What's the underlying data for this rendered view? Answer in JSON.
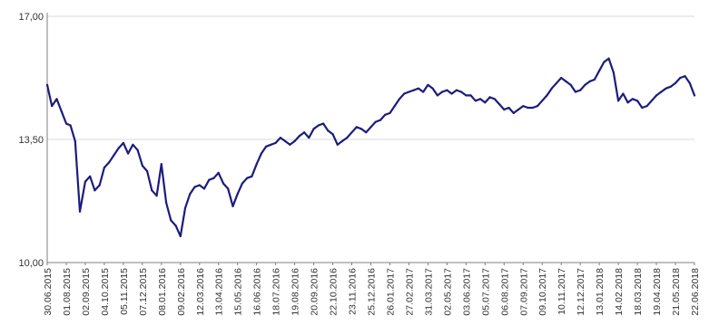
{
  "colors": {
    "line": "#1c1c7c",
    "grid": "#d9d9d9",
    "axis": "#7f7f7f",
    "text": "#333333"
  },
  "chart_data": {
    "type": "line",
    "title": "",
    "xlabel": "",
    "ylabel": "",
    "ylim": [
      10.0,
      17.0
    ],
    "yticks": [
      10.0,
      13.5,
      17.0
    ],
    "ytick_labels": [
      "10,00",
      "13,50",
      "17,00"
    ],
    "grid": "horizontal",
    "legend": "none",
    "xtick_labels": [
      "30.06.2015",
      "01.08.2015",
      "02.09.2015",
      "04.10.2015",
      "05.11.2015",
      "07.12.2015",
      "08.01.2016",
      "09.02.2016",
      "12.03.2016",
      "13.04.2016",
      "15.05.2016",
      "16.06.2016",
      "18.07.2016",
      "19.08.2016",
      "20.09.2016",
      "22.10.2016",
      "23.11.2016",
      "25.12.2016",
      "26.01.2017",
      "27.02.2017",
      "31.03.2017",
      "02.05.2017",
      "03.06.2017",
      "05.07.2017",
      "06.08.2017",
      "07.09.2017",
      "09.10.2017",
      "10.11.2017",
      "12.12.2017",
      "13.01.2018",
      "14.02.2018",
      "18.03.2018",
      "19.04.2018",
      "21.05.2018",
      "22.06.2018"
    ],
    "x": [
      "30.06.2015",
      "08.07.2015",
      "16.07.2015",
      "24.07.2015",
      "01.08.2015",
      "08.08.2015",
      "16.08.2015",
      "24.08.2015",
      "02.09.2015",
      "10.09.2015",
      "18.09.2015",
      "26.09.2015",
      "04.10.2015",
      "12.10.2015",
      "20.10.2015",
      "28.10.2015",
      "05.11.2015",
      "13.11.2015",
      "21.11.2015",
      "29.11.2015",
      "07.12.2015",
      "15.12.2015",
      "23.12.2015",
      "31.12.2015",
      "08.01.2016",
      "16.01.2016",
      "24.01.2016",
      "01.02.2016",
      "09.02.2016",
      "17.02.2016",
      "25.02.2016",
      "04.03.2016",
      "12.03.2016",
      "20.03.2016",
      "28.03.2016",
      "05.04.2016",
      "13.04.2016",
      "21.04.2016",
      "29.04.2016",
      "07.05.2016",
      "15.05.2016",
      "23.05.2016",
      "31.05.2016",
      "08.06.2016",
      "16.06.2016",
      "24.06.2016",
      "02.07.2016",
      "10.07.2016",
      "18.07.2016",
      "26.07.2016",
      "03.08.2016",
      "11.08.2016",
      "19.08.2016",
      "27.08.2016",
      "04.09.2016",
      "12.09.2016",
      "20.09.2016",
      "28.09.2016",
      "06.10.2016",
      "14.10.2016",
      "22.10.2016",
      "30.10.2016",
      "07.11.2016",
      "15.11.2016",
      "23.11.2016",
      "01.12.2016",
      "09.12.2016",
      "17.12.2016",
      "25.12.2016",
      "02.01.2017",
      "10.01.2017",
      "18.01.2017",
      "26.01.2017",
      "03.02.2017",
      "11.02.2017",
      "19.02.2017",
      "27.02.2017",
      "07.03.2017",
      "15.03.2017",
      "23.03.2017",
      "31.03.2017",
      "08.04.2017",
      "16.04.2017",
      "24.04.2017",
      "02.05.2017",
      "10.05.2017",
      "18.05.2017",
      "26.05.2017",
      "03.06.2017",
      "11.06.2017",
      "19.06.2017",
      "27.06.2017",
      "05.07.2017",
      "13.07.2017",
      "21.07.2017",
      "29.07.2017",
      "06.08.2017",
      "14.08.2017",
      "22.08.2017",
      "30.08.2017",
      "07.09.2017",
      "15.09.2017",
      "23.09.2017",
      "01.10.2017",
      "09.10.2017",
      "17.10.2017",
      "25.10.2017",
      "02.11.2017",
      "10.11.2017",
      "18.11.2017",
      "26.11.2017",
      "04.12.2017",
      "12.12.2017",
      "20.12.2017",
      "28.12.2017",
      "05.01.2018",
      "13.01.2018",
      "21.01.2018",
      "29.01.2018",
      "06.02.2018",
      "14.02.2018",
      "22.02.2018",
      "02.03.2018",
      "10.03.2018",
      "18.03.2018",
      "26.03.2018",
      "03.04.2018",
      "11.04.2018",
      "19.04.2018",
      "27.04.2018",
      "05.05.2018",
      "13.05.2018",
      "21.05.2018",
      "29.05.2018",
      "06.06.2018",
      "14.06.2018",
      "22.06.2018"
    ],
    "series": [
      {
        "name": "",
        "values": [
          15.05,
          14.45,
          14.65,
          14.3,
          13.95,
          13.9,
          13.45,
          11.45,
          12.3,
          12.45,
          12.05,
          12.2,
          12.7,
          12.85,
          13.05,
          13.25,
          13.4,
          13.1,
          13.35,
          13.2,
          12.75,
          12.6,
          12.05,
          11.9,
          12.8,
          11.7,
          11.2,
          11.05,
          10.75,
          11.55,
          11.95,
          12.15,
          12.2,
          12.1,
          12.35,
          12.4,
          12.55,
          12.25,
          12.1,
          11.6,
          11.95,
          12.25,
          12.4,
          12.45,
          12.8,
          13.1,
          13.3,
          13.35,
          13.4,
          13.55,
          13.45,
          13.35,
          13.45,
          13.6,
          13.7,
          13.55,
          13.8,
          13.9,
          13.95,
          13.75,
          13.65,
          13.35,
          13.45,
          13.55,
          13.7,
          13.85,
          13.8,
          13.7,
          13.85,
          14.0,
          14.05,
          14.2,
          14.25,
          14.45,
          14.65,
          14.8,
          14.85,
          14.9,
          14.95,
          14.85,
          15.05,
          14.95,
          14.75,
          14.85,
          14.9,
          14.8,
          14.9,
          14.85,
          14.75,
          14.75,
          14.6,
          14.65,
          14.55,
          14.7,
          14.65,
          14.5,
          14.35,
          14.4,
          14.25,
          14.35,
          14.45,
          14.4,
          14.4,
          14.45,
          14.6,
          14.75,
          14.95,
          15.1,
          15.25,
          15.15,
          15.05,
          14.85,
          14.9,
          15.05,
          15.15,
          15.2,
          15.45,
          15.7,
          15.8,
          15.4,
          14.6,
          14.8,
          14.55,
          14.65,
          14.6,
          14.4,
          14.45,
          14.6,
          14.75,
          14.85,
          14.95,
          15.0,
          15.1,
          15.25,
          15.3,
          15.1,
          14.75
        ]
      }
    ]
  }
}
